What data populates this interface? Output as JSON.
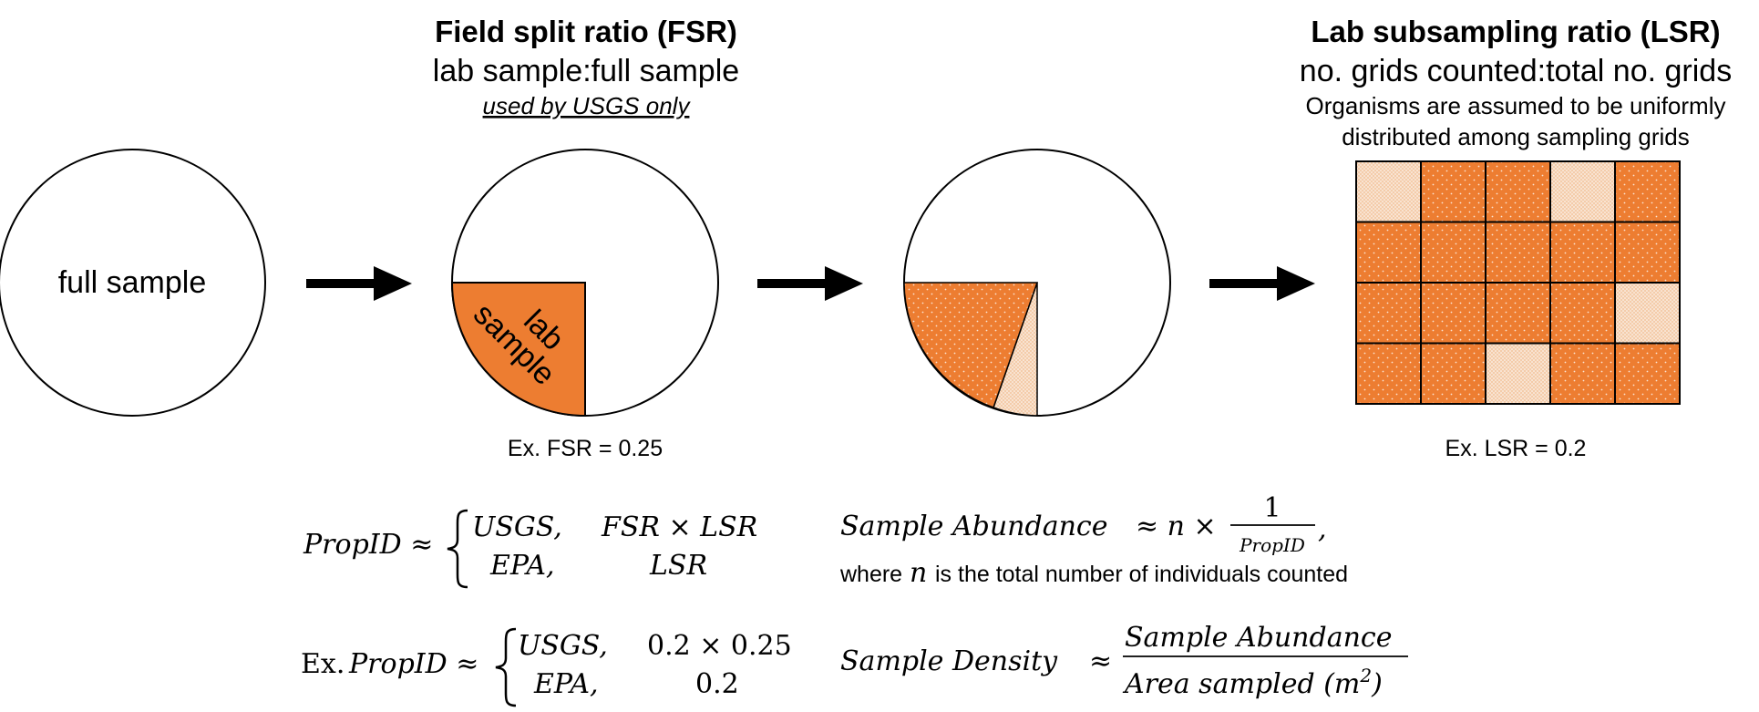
{
  "fsr": {
    "title": "Field split ratio (FSR)",
    "subtitle": "lab sample:full sample",
    "note": "used by USGS only",
    "example": "Ex. FSR = 0.25"
  },
  "lsr": {
    "title": "Lab subsampling ratio (LSR)",
    "subtitle": "no. grids counted:total no. grids",
    "note_line1": "Organisms are assumed to be uniformly",
    "note_line2": "distributed among sampling grids",
    "example": "Ex. LSR = 0.2"
  },
  "circles": {
    "full_sample_label": "full sample",
    "lab_sample_word1": "lab",
    "lab_sample_word2": "sample"
  },
  "grid": {
    "rows": 4,
    "cols": 5,
    "counted_cells": [
      [
        0,
        0
      ],
      [
        0,
        3
      ],
      [
        2,
        4
      ],
      [
        3,
        2
      ]
    ]
  },
  "colors": {
    "orange": "#ED7D31",
    "light_tan": "#F6D2B4",
    "outline": "#000000"
  },
  "equations": {
    "propid_lhs": "PropID ≈",
    "usgs_case": "USGS,",
    "usgs_value": "FSR × LSR",
    "epa_case": "EPA,",
    "epa_value": "LSR",
    "abundance_lhs": "Sample Abundance",
    "abundance_approx": "≈ n ×",
    "abundance_num": "1",
    "abundance_den": "PropID",
    "abundance_comma": ",",
    "where_prefix": "where",
    "where_var": "n",
    "where_suffix": "is the total number of individuals counted",
    "ex_prefix": "Ex.",
    "ex_propid": "PropID ≈",
    "ex_usgs_case": "USGS,",
    "ex_usgs_value": "0.2 × 0.25",
    "ex_epa_case": "EPA,",
    "ex_epa_value": "0.2",
    "density_lhs": "Sample Density",
    "density_approx": "≈",
    "density_num": "Sample Abundance",
    "density_den_text": "Area sampled (m",
    "density_den_exp": "2",
    "density_den_close": ")"
  }
}
